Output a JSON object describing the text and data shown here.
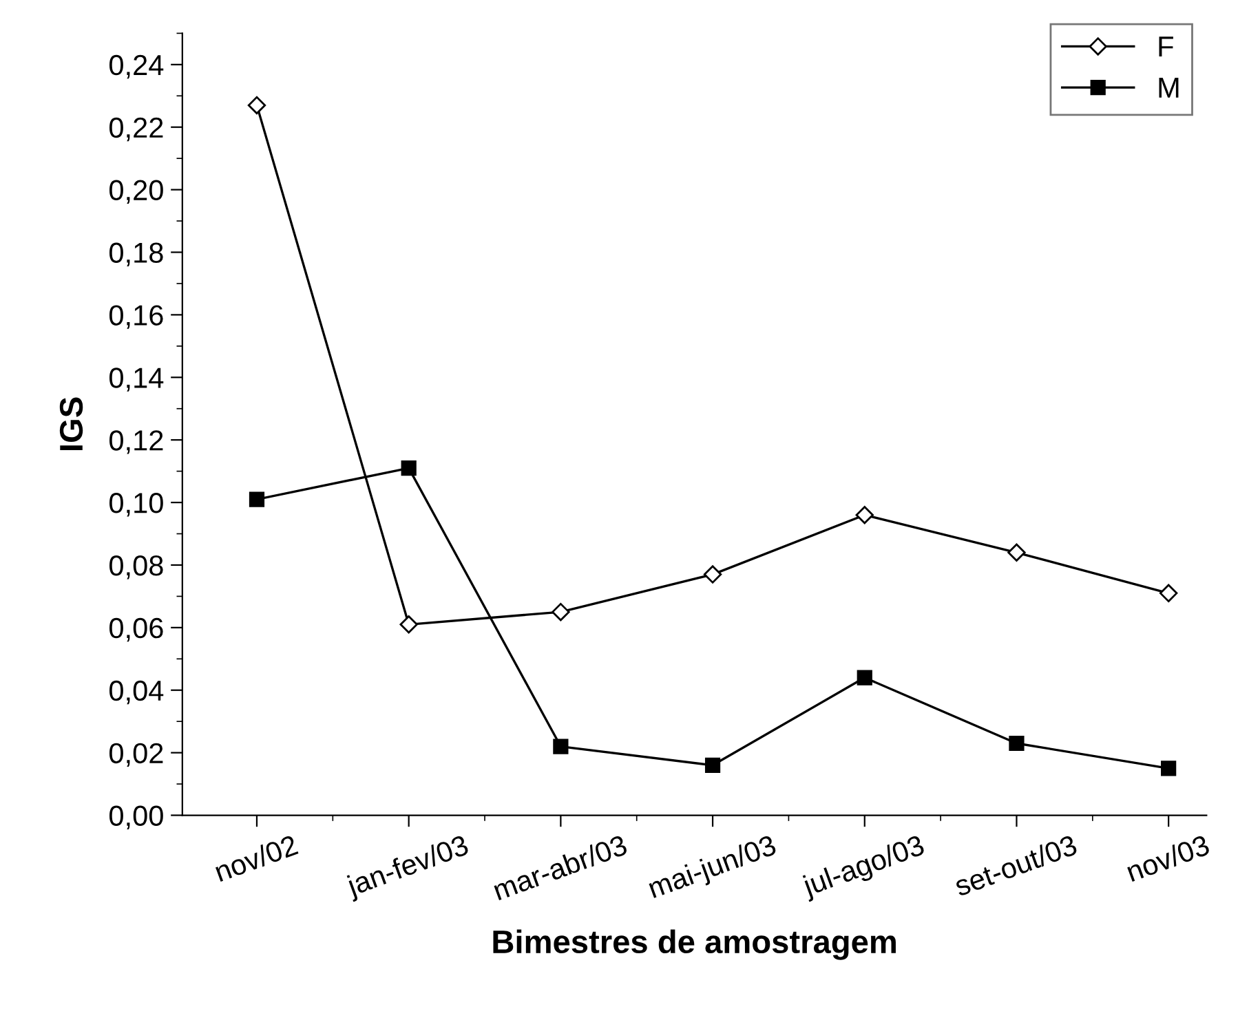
{
  "chart_data": {
    "type": "line",
    "xlabel": "Bimestres de amostragem",
    "ylabel": "IGS",
    "categories": [
      "nov/02",
      "jan-fev/03",
      "mar-abr/03",
      "mai-jun/03",
      "jul-ago/03",
      "set-out/03",
      "nov/03"
    ],
    "series": [
      {
        "name": "F",
        "color": "#000000",
        "marker": "diamond",
        "values": [
          0.227,
          0.061,
          0.065,
          0.077,
          0.096,
          0.084,
          0.071
        ]
      },
      {
        "name": "M",
        "color": "#000000",
        "marker": "square",
        "values": [
          0.101,
          0.111,
          0.022,
          0.016,
          0.044,
          0.023,
          0.015
        ]
      }
    ],
    "ylim": [
      0,
      0.25
    ],
    "yticks": [
      {
        "value": 0,
        "label": "0,00"
      },
      {
        "value": 0.02,
        "label": "0,02"
      },
      {
        "value": 0.04,
        "label": "0,04"
      },
      {
        "value": 0.06,
        "label": "0,06"
      },
      {
        "value": 0.08,
        "label": "0,08"
      },
      {
        "value": 0.1,
        "label": "0,10"
      },
      {
        "value": 0.12,
        "label": "0,12"
      },
      {
        "value": 0.14,
        "label": "0,14"
      },
      {
        "value": 0.16,
        "label": "0,16"
      },
      {
        "value": 0.18,
        "label": "0,18"
      },
      {
        "value": 0.2,
        "label": "0,20"
      },
      {
        "value": 0.22,
        "label": "0,22"
      },
      {
        "value": 0.24,
        "label": "0,24"
      }
    ],
    "grid": false,
    "legend": "top right",
    "line_style": "solid"
  }
}
